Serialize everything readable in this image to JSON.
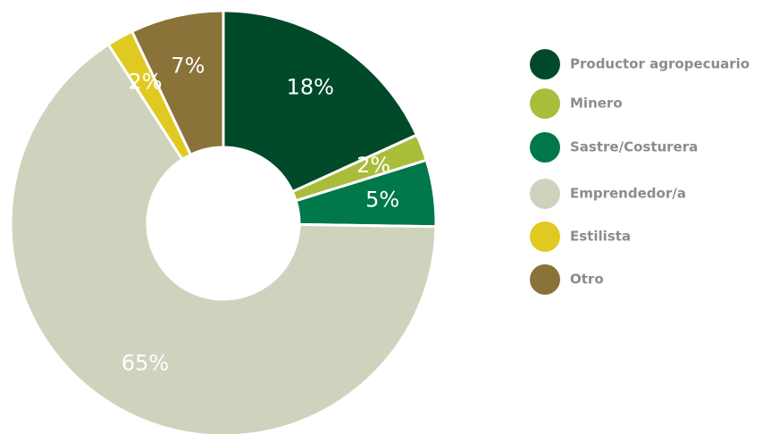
{
  "chart_data": {
    "type": "pie",
    "categories": [
      "Productor agropecuario",
      "Minero",
      "Sastre/Costurera",
      "Emprendedor/a",
      "Estilista",
      "Otro"
    ],
    "values": [
      18,
      2,
      5,
      65,
      2,
      7
    ],
    "value_labels": [
      "18%",
      "2%",
      "5%",
      "65%",
      "2%",
      "7%"
    ],
    "colors": [
      "#004a2a",
      "#a9bd3b",
      "#00784a",
      "#cfd3bd",
      "#e0ca22",
      "#8a7339"
    ],
    "donut": true,
    "legend": "right"
  }
}
